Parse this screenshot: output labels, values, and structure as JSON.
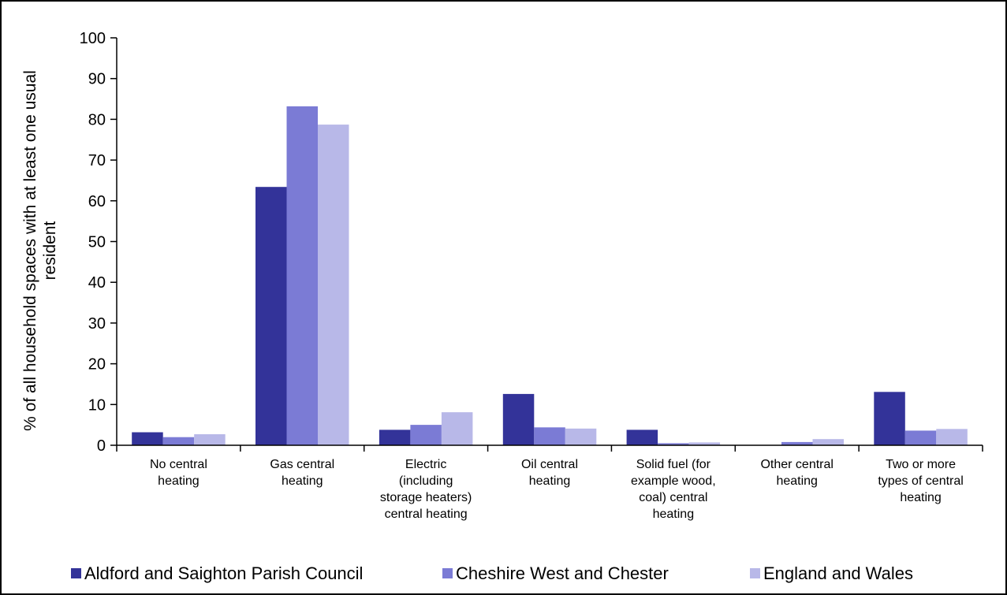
{
  "chart_data": {
    "type": "bar",
    "categories": [
      [
        "No central",
        "heating"
      ],
      [
        "Gas central",
        "heating"
      ],
      [
        "Electric",
        "(including",
        "storage heaters)",
        "central heating"
      ],
      [
        "Oil central",
        "heating"
      ],
      [
        "Solid fuel (for",
        "example wood,",
        "coal) central",
        "heating"
      ],
      [
        "Other central",
        "heating"
      ],
      [
        "Two or more",
        "types of central",
        "heating"
      ]
    ],
    "series": [
      {
        "name": "Aldford and Saighton Parish Council",
        "color": "#333399",
        "values": [
          3.2,
          63.4,
          3.8,
          12.6,
          3.8,
          0,
          13.1
        ]
      },
      {
        "name": "Cheshire West and Chester",
        "color": "#7b7bd5",
        "values": [
          2.0,
          83.2,
          5.0,
          4.4,
          0.5,
          0.8,
          3.6
        ]
      },
      {
        "name": "England and Wales",
        "color": "#b8b8e8",
        "values": [
          2.7,
          78.7,
          8.1,
          4.1,
          0.7,
          1.5,
          4.0
        ]
      }
    ],
    "ylabel": [
      "% of all household spaces with at least one usual",
      "resident"
    ],
    "ylim": [
      0,
      100
    ],
    "yticks": [
      "0",
      "10",
      "20",
      "30",
      "40",
      "50",
      "60",
      "70",
      "80",
      "90",
      "100"
    ],
    "grid": false,
    "legend": "bottom"
  }
}
